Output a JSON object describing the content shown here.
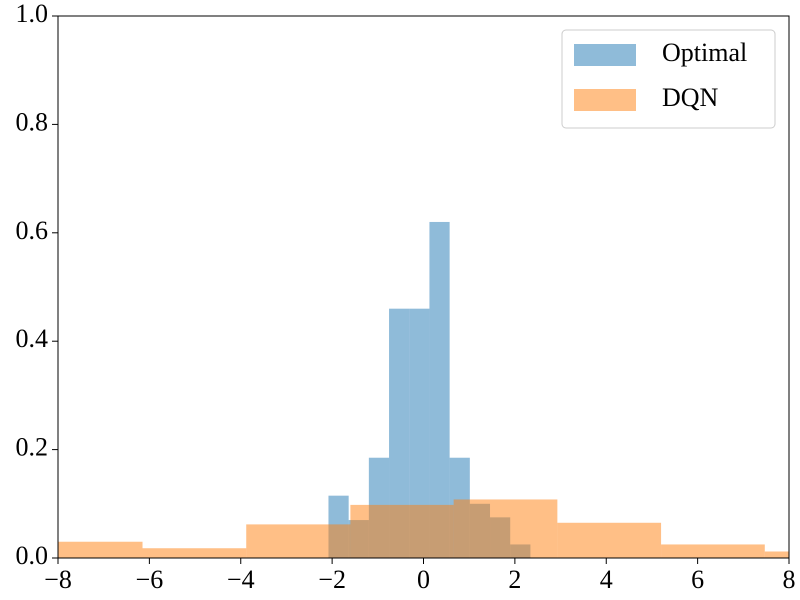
{
  "chart_data": {
    "type": "histogram",
    "series": [
      {
        "name": "Optimal",
        "color": "#1f77b4",
        "bins": [
          -2.08,
          -1.638,
          -1.196,
          -0.754,
          -0.312,
          0.13,
          0.572,
          1.014,
          1.456,
          1.898,
          2.34
        ],
        "values": [
          0.115,
          0.07,
          0.185,
          0.46,
          0.46,
          0.62,
          0.185,
          0.1,
          0.075,
          0.025
        ]
      },
      {
        "name": "DQN",
        "color": "#ff7f0e",
        "bins": [
          -8.42,
          -6.15,
          -3.88,
          -1.6,
          0.66,
          2.93,
          5.2,
          7.47,
          9.74
        ],
        "values": [
          0.03,
          0.018,
          0.062,
          0.098,
          0.108,
          0.065,
          0.025,
          0.012
        ]
      }
    ],
    "xlim": [
      -8,
      8
    ],
    "xticks": [
      {
        "value": -8,
        "label": "−8"
      },
      {
        "value": -6,
        "label": "−6"
      },
      {
        "value": -4,
        "label": "−4"
      },
      {
        "value": -2,
        "label": "−2"
      },
      0,
      2,
      4,
      6,
      8
    ],
    "ylim": [
      0,
      1
    ],
    "yticks": [
      {
        "value": 0,
        "label": "0.0"
      },
      0.2,
      0.4,
      0.6,
      0.8,
      {
        "value": 1,
        "label": "1.0"
      }
    ],
    "opacity": 0.5,
    "legend": "upper right"
  }
}
